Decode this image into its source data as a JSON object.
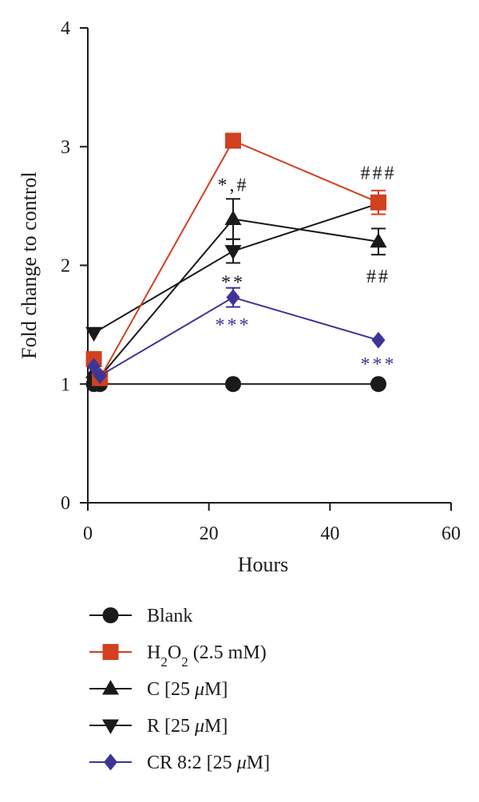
{
  "chart_data": {
    "type": "line",
    "xlabel": "Hours",
    "ylabel": "Fold change to control",
    "xlim": [
      0,
      60
    ],
    "ylim": [
      0,
      4
    ],
    "xticks": [
      0,
      20,
      40,
      60
    ],
    "yticks": [
      0,
      1,
      2,
      3,
      4
    ],
    "grid": false,
    "legend_position": "bottom",
    "series": [
      {
        "key": "blank",
        "name": "Blank",
        "color": "#1a1a1a",
        "marker": "circle",
        "points": [
          {
            "x": 1,
            "y": 1.0
          },
          {
            "x": 2,
            "y": 1.0
          },
          {
            "x": 24,
            "y": 1.0
          },
          {
            "x": 48,
            "y": 1.0
          }
        ]
      },
      {
        "key": "h2o2",
        "name": "H2O2 (2.5 mM)",
        "name_parts": {
          "pre": "H",
          "sub1": "2",
          "mid": "O",
          "sub2": "2",
          "post": " (2.5 mM)"
        },
        "color": "#d2401f",
        "marker": "square",
        "points": [
          {
            "x": 1,
            "y": 1.21
          },
          {
            "x": 2,
            "y": 1.05
          },
          {
            "x": 24,
            "y": 3.05
          },
          {
            "x": 48,
            "y": 2.53,
            "err": 0.1
          }
        ]
      },
      {
        "key": "c",
        "name": "C [25 μM]",
        "name_parts": {
          "pre": "C [25 ",
          "mu": "μ",
          "post": "M]"
        },
        "color": "#1a1a1a",
        "marker": "triangle-up",
        "points": [
          {
            "x": 1,
            "y": 1.1
          },
          {
            "x": 2,
            "y": 1.06
          },
          {
            "x": 24,
            "y": 2.39,
            "err": 0.17
          },
          {
            "x": 48,
            "y": 2.2,
            "err": 0.11
          }
        ]
      },
      {
        "key": "r",
        "name": "R [25 μM]",
        "name_parts": {
          "pre": "R [25 ",
          "mu": "μ",
          "post": "M]"
        },
        "color": "#1a1a1a",
        "marker": "triangle-down",
        "points": [
          {
            "x": 1,
            "y": 1.43
          },
          {
            "x": 24,
            "y": 2.12,
            "err": 0.1
          },
          {
            "x": 48,
            "y": 2.52
          }
        ]
      },
      {
        "key": "cr",
        "name": "CR 8:2 [25 μM]",
        "name_parts": {
          "pre": "CR 8:2 [25 ",
          "mu": "μ",
          "post": "M]"
        },
        "color": "#3d3596",
        "marker": "diamond",
        "points": [
          {
            "x": 1,
            "y": 1.15
          },
          {
            "x": 2,
            "y": 1.07
          },
          {
            "x": 24,
            "y": 1.73,
            "err": 0.08
          },
          {
            "x": 48,
            "y": 1.37
          }
        ]
      }
    ],
    "annotations": [
      {
        "text": "*,#",
        "x": 24,
        "y": 2.68,
        "color": "#1a1a1a"
      },
      {
        "text": "**",
        "x": 24,
        "y": 1.86,
        "color": "#1a1a1a"
      },
      {
        "text": "***",
        "x": 24,
        "y": 1.5,
        "color": "#3d3596"
      },
      {
        "text": "###",
        "x": 48,
        "y": 2.78,
        "color": "#1a1a1a"
      },
      {
        "text": "##",
        "x": 48,
        "y": 1.91,
        "color": "#1a1a1a"
      },
      {
        "text": "***",
        "x": 48,
        "y": 1.17,
        "color": "#3d3596"
      }
    ]
  }
}
